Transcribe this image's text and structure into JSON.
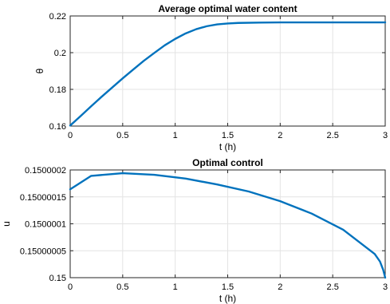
{
  "chart_data": [
    {
      "type": "line",
      "title": "Average optimal water content",
      "xlabel": "t (h)",
      "ylabel": "θ",
      "xlim": [
        0,
        3
      ],
      "ylim": [
        0.16,
        0.22
      ],
      "xticks": [
        0,
        0.5,
        1,
        1.5,
        2,
        2.5,
        3
      ],
      "xtick_labels": [
        "0",
        "0.5",
        "1",
        "1.5",
        "2",
        "2.5",
        "3"
      ],
      "yticks": [
        0.16,
        0.18,
        0.2,
        0.22
      ],
      "ytick_labels": [
        "0.16",
        "0.18",
        "0.2",
        "0.22"
      ],
      "grid": true,
      "color": "#0072BD",
      "series": [
        {
          "x": [
            0,
            0.1,
            0.2,
            0.3,
            0.4,
            0.5,
            0.6,
            0.7,
            0.8,
            0.9,
            1.0,
            1.1,
            1.2,
            1.3,
            1.4,
            1.5,
            1.6,
            1.8,
            2.0,
            2.5,
            3.0
          ],
          "y": [
            0.1603,
            0.1655,
            0.1708,
            0.176,
            0.181,
            0.186,
            0.1908,
            0.1955,
            0.1998,
            0.204,
            0.2075,
            0.2105,
            0.2128,
            0.2144,
            0.2154,
            0.2159,
            0.2162,
            0.2164,
            0.2165,
            0.2165,
            0.2165
          ]
        }
      ]
    },
    {
      "type": "line",
      "title": "Optimal control",
      "xlabel": "t (h)",
      "ylabel": "u",
      "xlim": [
        0,
        3
      ],
      "ylim": [
        0.15,
        0.1500002
      ],
      "xticks": [
        0,
        0.5,
        1,
        1.5,
        2,
        2.5,
        3
      ],
      "xtick_labels": [
        "0",
        "0.5",
        "1",
        "1.5",
        "2",
        "2.5",
        "3"
      ],
      "yticks": [
        0.15,
        0.15000005,
        0.1500001,
        0.15000015,
        0.1500002
      ],
      "ytick_labels": [
        "0.15",
        "0.15000005",
        "0.1500001",
        "0.15000015",
        "0.1500002"
      ],
      "grid": true,
      "color": "#0072BD",
      "series": [
        {
          "x": [
            0,
            0.2,
            0.5,
            0.8,
            1.1,
            1.4,
            1.7,
            2.0,
            2.3,
            2.6,
            2.9,
            2.95,
            2.98,
            3.0
          ],
          "y": [
            0.150000164,
            0.150000189,
            0.150000194,
            0.150000191,
            0.150000184,
            0.150000173,
            0.15000016,
            0.150000142,
            0.150000119,
            0.150000089,
            0.150000044,
            0.15000003,
            0.150000015,
            0.15
          ]
        }
      ]
    }
  ]
}
